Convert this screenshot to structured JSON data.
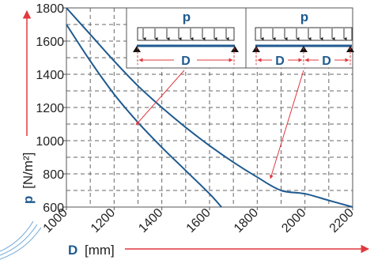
{
  "chart_data": {
    "type": "line",
    "xlabel_symbol": "D",
    "xlabel_unit": "[mm]",
    "ylabel_symbol": "p",
    "ylabel_unit": "[N/m²]",
    "xlim": [
      1000,
      2200
    ],
    "ylim": [
      600,
      1800
    ],
    "x_ticks": [
      1000,
      1200,
      1400,
      1600,
      1800,
      2000,
      2200
    ],
    "x_tick_labels": [
      "1000",
      "1200",
      "1400",
      "1600",
      "1800",
      "2000",
      "2200"
    ],
    "y_ticks": [
      600,
      800,
      1000,
      1200,
      1400,
      1600,
      1800
    ],
    "y_tick_labels": [
      "600",
      "800",
      "1000",
      "1200",
      "1400",
      "1600",
      "1800"
    ],
    "grid": true,
    "series": [
      {
        "x": [
          1000,
          1100,
          1200,
          1300,
          1400,
          1500,
          1600,
          1650
        ],
        "y": [
          1700,
          1480,
          1280,
          1110,
          960,
          820,
          680,
          600
        ]
      },
      {
        "x": [
          1000,
          1100,
          1200,
          1300,
          1400,
          1500,
          1600,
          1700,
          1800,
          1900,
          2000,
          2100,
          2200
        ],
        "y": [
          1800,
          1640,
          1480,
          1330,
          1200,
          1080,
          970,
          870,
          780,
          700,
          680,
          640,
          600
        ]
      }
    ],
    "insets": [
      {
        "load_label": "p",
        "span_label": "D"
      },
      {
        "load_label": "p",
        "span_labels": [
          "D",
          "D"
        ]
      }
    ],
    "colors": {
      "curve": "#1f5a8f",
      "axis_arrow": "#e0393e",
      "label": "#1f5a8f",
      "text": "#222222"
    }
  }
}
